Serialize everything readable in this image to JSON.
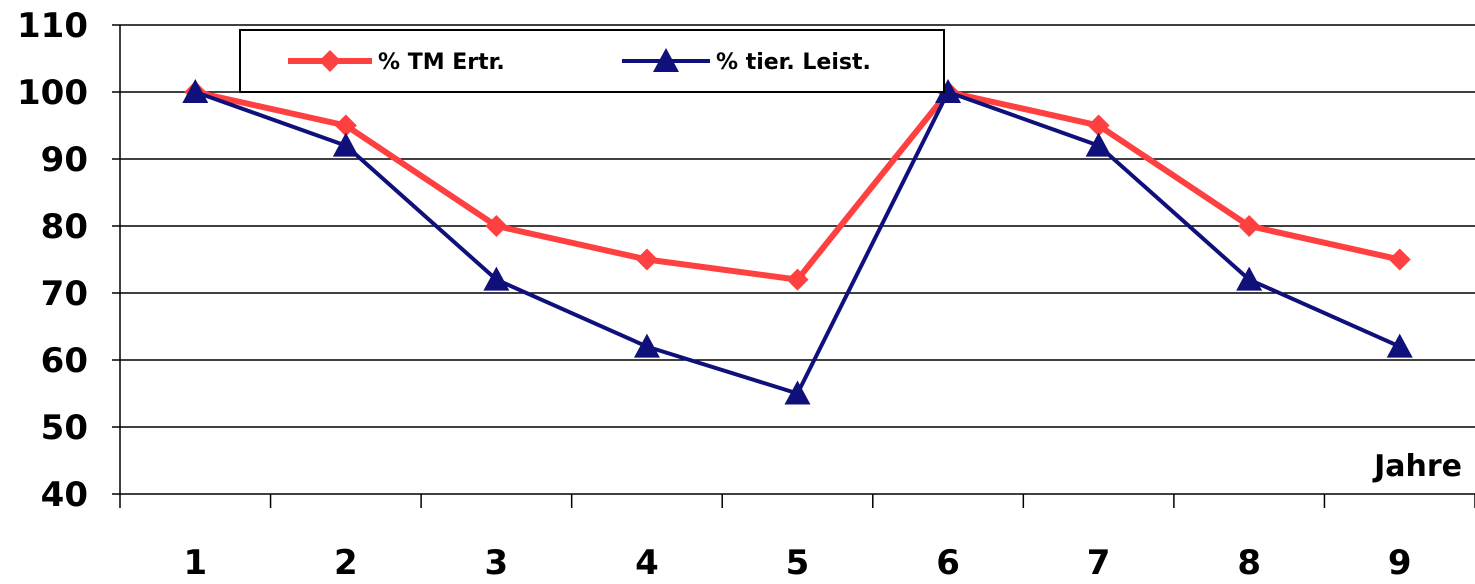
{
  "chart_data": {
    "type": "line",
    "x": [
      "1",
      "2",
      "3",
      "4",
      "5",
      "6",
      "7",
      "8",
      "9"
    ],
    "xlabel": "Jahre",
    "ylabel": "",
    "ylim": [
      40,
      110
    ],
    "yticks": [
      40,
      50,
      60,
      70,
      80,
      90,
      100,
      110
    ],
    "grid": "horizontal",
    "legend_position": "top",
    "series": [
      {
        "name": "% TM Ertr.",
        "color": "#ff4040",
        "marker": "diamond",
        "values": [
          100,
          95,
          80,
          75,
          72,
          100,
          95,
          80,
          75
        ]
      },
      {
        "name": "% tier. Leist.",
        "color": "#10107a",
        "marker": "triangle",
        "values": [
          100,
          92,
          72,
          62,
          55,
          100,
          92,
          72,
          62
        ]
      }
    ]
  }
}
